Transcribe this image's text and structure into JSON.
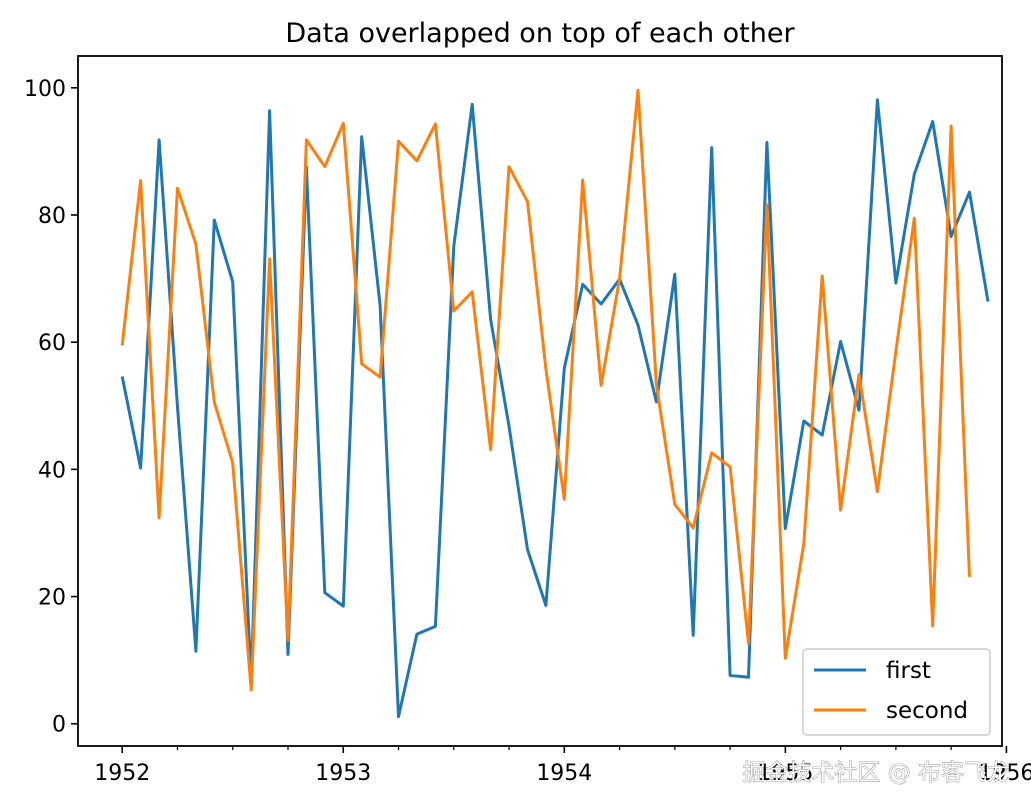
{
  "chart_data": {
    "type": "line",
    "title": "Data overlapped on top of each other",
    "xlabel": "",
    "ylabel": "",
    "xlim": [
      1951.8,
      1955.98
    ],
    "ylim": [
      -3.5,
      105
    ],
    "x_start": 1952.0,
    "x_step": 0.08333,
    "xticks": [
      {
        "value": 1952,
        "label": "1952"
      },
      {
        "value": 1953,
        "label": "1953"
      },
      {
        "value": 1954,
        "label": "1954"
      },
      {
        "value": 1955,
        "label": "1955"
      },
      {
        "value": 1956,
        "label": "1956"
      }
    ],
    "yticks": [
      {
        "value": 0,
        "label": "0"
      },
      {
        "value": 20,
        "label": "20"
      },
      {
        "value": 40,
        "label": "40"
      },
      {
        "value": 60,
        "label": "60"
      },
      {
        "value": 80,
        "label": "80"
      },
      {
        "value": 100,
        "label": "100"
      }
    ],
    "legend_position": "lower-right",
    "series": [
      {
        "name": "first",
        "color": "#1f77b4",
        "values": [
          54.6,
          40.2,
          91.8,
          49.8,
          11.4,
          79.2,
          69.5,
          6.5,
          96.4,
          10.9,
          87.5,
          20.6,
          18.5,
          92.3,
          65.8,
          1.1,
          14.1,
          15.3,
          75.1,
          97.4,
          63.6,
          46.8,
          27.4,
          18.6,
          55.9,
          69.1,
          66.0,
          69.9,
          62.7,
          50.6,
          70.7,
          13.9,
          90.6,
          7.6,
          7.3,
          91.4,
          30.7,
          47.6,
          45.4,
          60.1,
          49.3,
          98.1,
          69.3,
          86.4,
          94.7,
          76.6,
          83.6,
          66.4
        ]
      },
      {
        "name": "second",
        "color": "#ff7f0e",
        "values": [
          59.5,
          85.4,
          32.4,
          84.2,
          75.4,
          50.6,
          41.0,
          5.3,
          73.1,
          13.1,
          91.8,
          87.6,
          94.4,
          56.6,
          54.5,
          91.6,
          88.5,
          94.3,
          64.9,
          67.9,
          43.1,
          87.6,
          82.1,
          55.8,
          35.3,
          85.5,
          53.2,
          70.0,
          99.6,
          53.3,
          34.5,
          30.8,
          42.6,
          40.4,
          12.6,
          81.6,
          10.3,
          28.3,
          70.4,
          33.6,
          54.9,
          36.5,
          58.6,
          79.5,
          15.4,
          94.0,
          23.1
        ]
      }
    ]
  },
  "watermark": "掘金技术社区 @ 布客飞龙"
}
